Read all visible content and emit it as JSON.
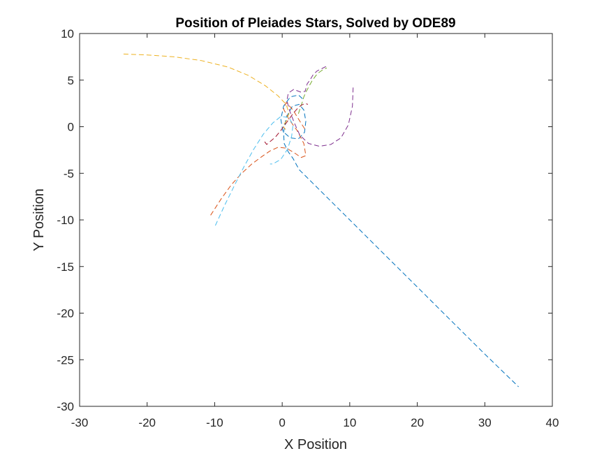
{
  "chart_data": {
    "type": "line",
    "title": "Position of Pleiades Stars, Solved by ODE89",
    "xlabel": "X Position",
    "ylabel": "Y Position",
    "xlim": [
      -30,
      40
    ],
    "ylim": [
      -30,
      10
    ],
    "xticks": [
      -30,
      -20,
      -10,
      0,
      10,
      20,
      30,
      40
    ],
    "yticks": [
      10,
      5,
      0,
      -5,
      -10,
      -15,
      -20,
      -25,
      -30
    ],
    "grid": false,
    "legend": "none",
    "line_style": "dashed",
    "series": [
      {
        "color": "#0072BD",
        "x": [
          3,
          2.4,
          1.2,
          0.2,
          -0.2,
          0.1,
          1.2,
          2.4,
          3.3,
          3.5,
          3.2,
          2.5,
          1.5,
          0.6,
          0.2,
          0.3,
          0.9,
          1.6,
          2.5,
          5,
          10,
          15,
          20,
          25,
          30,
          35
        ],
        "y": [
          3,
          3.4,
          3.2,
          2.2,
          0.8,
          -0.5,
          -1.2,
          -1.3,
          -0.6,
          0.6,
          1.8,
          2.4,
          2.2,
          1,
          -0.6,
          -1.8,
          -2.7,
          -3.4,
          -4.6,
          -6.4,
          -10,
          -13.6,
          -17.2,
          -20.8,
          -24.4,
          -27.9
        ]
      },
      {
        "color": "#D95319",
        "x": [
          -10.6,
          -9,
          -7.5,
          -6,
          -4.5,
          -3,
          -1.8,
          -0.6,
          0.6,
          1.8,
          2.8,
          3.5,
          3.2,
          2.2,
          1,
          0.2,
          0.6,
          1.6,
          2.6,
          3.4
        ],
        "y": [
          -9.5,
          -7.7,
          -6.2,
          -5,
          -4,
          -3.2,
          -2.6,
          -2.2,
          -2.3,
          -2.8,
          -3.3,
          -3.1,
          -1.8,
          -0.4,
          0.8,
          1.9,
          2.6,
          1.8,
          0.6,
          -0.3
        ]
      },
      {
        "color": "#EDB120",
        "x": [
          -23.5,
          -20,
          -16,
          -12,
          -8,
          -5,
          -2.5,
          -0.6,
          0.6,
          1,
          0.6,
          0.1,
          0.5
        ],
        "y": [
          7.8,
          7.7,
          7.5,
          7.1,
          6.4,
          5.5,
          4.4,
          3.3,
          2.4,
          1.4,
          0.6,
          0.1,
          -0.3
        ]
      },
      {
        "color": "#7E2F8E",
        "x": [
          10.5,
          10.4,
          9.8,
          8.7,
          7.2,
          5.5,
          3.9,
          2.6,
          1.8,
          1.1,
          0.7,
          0.9,
          1.7,
          2.8,
          3.4,
          3.7,
          4.1,
          4.6,
          5.2,
          5.8,
          6.3,
          6.6
        ],
        "y": [
          4.2,
          2.2,
          0.2,
          -1.2,
          -1.9,
          -2.1,
          -1.8,
          -0.9,
          0.4,
          1.7,
          2.8,
          3.6,
          4,
          3.7,
          3.8,
          4.6,
          5,
          5.6,
          6,
          6.2,
          6.4,
          6.5
        ]
      },
      {
        "color": "#77AC30",
        "x": [
          2.4,
          2.7,
          3,
          3.2,
          3.5,
          3.8,
          4.1,
          4.4,
          4.7,
          5,
          5.4,
          5.8,
          6.2,
          6.6
        ],
        "y": [
          1.4,
          2.1,
          2.7,
          3.2,
          3.7,
          4.1,
          4.5,
          4.9,
          5.2,
          5.5,
          5.8,
          6,
          6.2,
          6.3
        ]
      },
      {
        "color": "#4DBEEE",
        "x": [
          -9.9,
          -8.5,
          -7,
          -5.6,
          -4.2,
          -2.8,
          -1.4,
          -0.2,
          1,
          1.6,
          1.4,
          0.8,
          -0.2,
          -1.4,
          -1.8
        ],
        "y": [
          -10.6,
          -8.4,
          -6.2,
          -4.2,
          -2.4,
          -0.8,
          0.4,
          1.1,
          1,
          0.2,
          -1,
          -2.4,
          -3.5,
          -4,
          -4
        ]
      },
      {
        "color": "#A2142F",
        "x": [
          -2.6,
          -2.3,
          -1.8,
          -1,
          -0.2,
          0.4,
          1,
          1.6,
          2.2,
          2.8,
          3.4,
          3.8
        ],
        "y": [
          -1.6,
          -1.9,
          -1.6,
          -1.1,
          -0.4,
          0.2,
          0.8,
          1.4,
          1.9,
          2.3,
          2.5,
          2.4
        ]
      }
    ]
  }
}
